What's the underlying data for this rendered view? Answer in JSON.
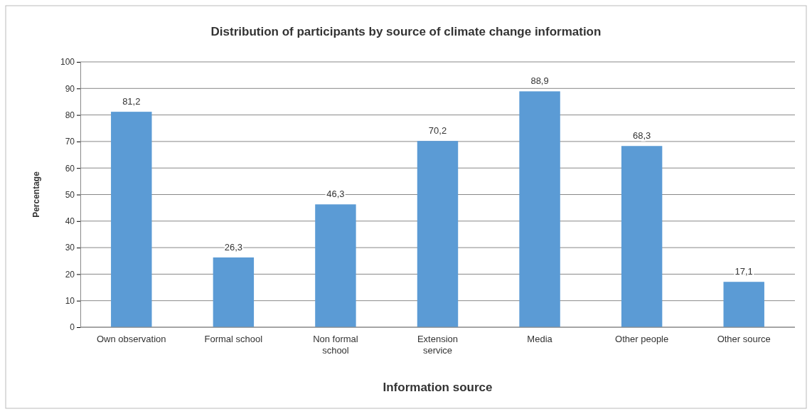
{
  "chart_data": {
    "type": "bar",
    "title": "Distribution of participants by source of climate change information",
    "xlabel": "Information source",
    "ylabel": "Percentage",
    "categories": [
      "Own observation",
      "Formal school",
      "Non formal school",
      "Extension service",
      "Media",
      "Other people",
      "Other source"
    ],
    "values": [
      81.2,
      26.3,
      46.3,
      70.2,
      88.9,
      68.3,
      17.1
    ],
    "value_labels": [
      "81,2",
      "26,3",
      "46,3",
      "70,2",
      "88,9",
      "68,3",
      "17,1"
    ],
    "color": "#5b9bd5",
    "ylim": [
      0,
      100
    ],
    "yticks": [
      0,
      10,
      20,
      30,
      40,
      50,
      60,
      70,
      80,
      90,
      100
    ],
    "grid": "y"
  }
}
